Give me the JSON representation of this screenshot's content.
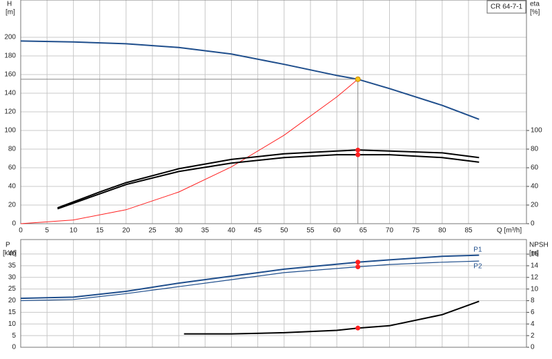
{
  "chart_data": [
    {
      "type": "line",
      "title": "CR 64-7-1",
      "ylabel": "H",
      "yunit": "[m]",
      "y2label": "eta",
      "y2unit": "[%]",
      "xlabel": "Q [m³/h]",
      "xlim": [
        0,
        96
      ],
      "xticks": [
        0,
        5,
        10,
        15,
        20,
        25,
        30,
        35,
        40,
        45,
        50,
        55,
        60,
        65,
        70,
        75,
        80,
        85
      ],
      "ylim": [
        0,
        240
      ],
      "yticks": [
        0,
        20,
        40,
        60,
        80,
        100,
        120,
        140,
        160,
        180,
        200
      ],
      "y2lim": [
        0,
        240
      ],
      "y2ticks": [
        0,
        20,
        40,
        60,
        80,
        100
      ],
      "grid": true,
      "series": [
        {
          "color": "#1f4e8c",
          "x": [
            0,
            10,
            20,
            30,
            40,
            50,
            60,
            64,
            70,
            80,
            87
          ],
          "values": [
            196,
            195,
            193,
            189,
            182,
            171,
            159,
            155,
            145,
            127,
            112
          ]
        },
        {
          "color": "#ff2020",
          "x": [
            0,
            10,
            20,
            30,
            40,
            50,
            60,
            64
          ],
          "values": [
            0,
            4,
            15,
            34,
            61,
            95,
            136,
            155
          ]
        },
        {
          "color": "#000000",
          "axis": "y2",
          "x": [
            7,
            15,
            20,
            30,
            40,
            50,
            60,
            64,
            70,
            80,
            87
          ],
          "values": [
            17,
            34,
            44,
            59,
            69,
            75,
            78,
            79,
            78,
            76,
            71
          ]
        },
        {
          "color": "#000000",
          "axis": "y2",
          "x": [
            7,
            15,
            20,
            30,
            40,
            50,
            60,
            64,
            70,
            80,
            87
          ],
          "values": [
            16,
            32,
            42,
            56,
            65,
            71,
            74,
            74,
            74,
            71,
            66
          ]
        }
      ],
      "markers": [
        {
          "x": 64,
          "y": 155,
          "color": "#f5c518"
        },
        {
          "x": 64,
          "y": 79,
          "color": "#ff2020",
          "axis": "y2"
        },
        {
          "x": 64,
          "y": 74,
          "color": "#ff2020",
          "axis": "y2"
        }
      ]
    },
    {
      "type": "line",
      "ylabel": "P",
      "yunit": "[kW]",
      "y2label": "NPSH",
      "y2unit": "[m]",
      "xlim": [
        0,
        96
      ],
      "ylim": [
        0,
        46.2
      ],
      "yticks": [
        0,
        5,
        10,
        15,
        20,
        25,
        30,
        35,
        40
      ],
      "y2lim": [
        0,
        18.5
      ],
      "y2ticks": [
        0,
        2,
        4,
        6,
        8,
        10,
        12,
        14,
        16
      ],
      "grid": true,
      "series": [
        {
          "name": "P1",
          "color": "#1f4e8c",
          "x": [
            0,
            10,
            20,
            30,
            40,
            50,
            64,
            70,
            80,
            87
          ],
          "values": [
            21,
            21.5,
            24,
            27.5,
            30.5,
            33.5,
            36.5,
            37.5,
            39,
            39.5
          ]
        },
        {
          "name": "P2",
          "color": "#1f4e8c",
          "x": [
            0,
            10,
            20,
            30,
            40,
            50,
            64,
            70,
            80,
            87
          ],
          "values": [
            20,
            20.5,
            23,
            26,
            29,
            32,
            34.5,
            35.5,
            36.5,
            37
          ]
        },
        {
          "color": "#000000",
          "axis": "y2",
          "x": [
            31,
            40,
            50,
            60,
            64,
            70,
            80,
            87
          ],
          "values": [
            2.3,
            2.3,
            2.5,
            2.9,
            3.3,
            3.7,
            5.6,
            7.9
          ]
        }
      ],
      "markers": [
        {
          "x": 64,
          "y": 36.5,
          "color": "#ff2020"
        },
        {
          "x": 64,
          "y": 34.5,
          "color": "#ff2020"
        },
        {
          "x": 64,
          "y": 3.3,
          "color": "#ff2020",
          "axis": "y2"
        }
      ]
    }
  ]
}
